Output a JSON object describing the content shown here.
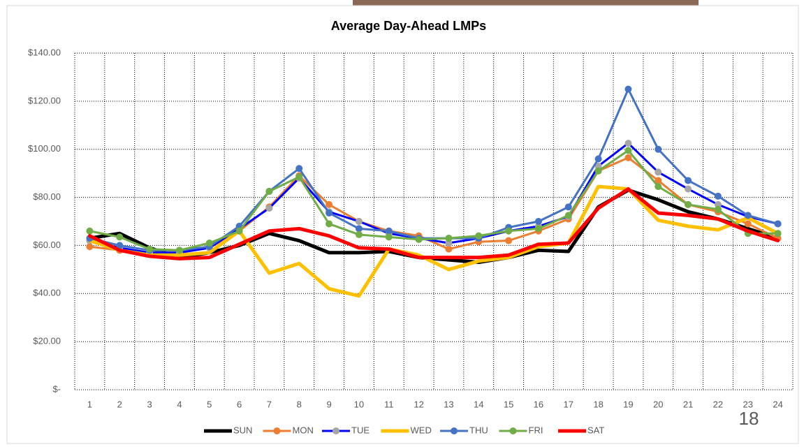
{
  "chart_data": {
    "type": "line",
    "title": "Average Day-Ahead LMPs",
    "categories": [
      "1",
      "2",
      "3",
      "4",
      "5",
      "6",
      "7",
      "8",
      "9",
      "10",
      "11",
      "12",
      "13",
      "14",
      "15",
      "16",
      "17",
      "18",
      "19",
      "20",
      "21",
      "22",
      "23",
      "24"
    ],
    "series": [
      {
        "name": "SUN",
        "color": "#000000",
        "marker": false,
        "values": [
          63,
          65,
          59,
          55,
          57,
          60,
          65,
          62,
          57,
          57,
          57.5,
          55,
          54,
          53,
          55,
          58,
          57.5,
          76,
          83,
          79,
          74,
          71,
          67,
          63
        ]
      },
      {
        "name": "MON",
        "color": "#ed7d31",
        "marker": true,
        "values": [
          59.5,
          58,
          57,
          57,
          59,
          66,
          76,
          89,
          77,
          70,
          66,
          64,
          58.5,
          61.5,
          62,
          66,
          71,
          91,
          96.5,
          87,
          77,
          74,
          69,
          63
        ]
      },
      {
        "name": "TUE",
        "color": "#0000ff",
        "marker": true,
        "marker_color": "#a5a5a5",
        "values": [
          62,
          59,
          57,
          57,
          59,
          67,
          75.5,
          88,
          74,
          70,
          65,
          63,
          61,
          63,
          66,
          68,
          72,
          93,
          102.5,
          90.5,
          83.5,
          77,
          72,
          69
        ]
      },
      {
        "name": "WED",
        "color": "#ffc000",
        "marker": false,
        "values": [
          62,
          58,
          56,
          56,
          57,
          66,
          48.5,
          52.5,
          42,
          39,
          58.5,
          56,
          50,
          53.5,
          55,
          59.5,
          61,
          84.5,
          83.5,
          70.5,
          68,
          66.5,
          71.5,
          65
        ]
      },
      {
        "name": "THU",
        "color": "#4472c4",
        "marker": true,
        "values": [
          63,
          60,
          58,
          58,
          59.5,
          68,
          82.5,
          92,
          73.5,
          67,
          66,
          63,
          63,
          63,
          67.5,
          70,
          76,
          96,
          125,
          100,
          87,
          80.5,
          72.5,
          69
        ]
      },
      {
        "name": "FRI",
        "color": "#70ad47",
        "marker": true,
        "values": [
          66,
          63.5,
          58.5,
          58,
          61,
          66,
          82.5,
          88.5,
          69,
          64.5,
          63.5,
          62.5,
          63,
          64,
          66,
          67,
          72.5,
          91,
          99.5,
          84.5,
          77,
          75,
          65,
          65
        ]
      },
      {
        "name": "SAT",
        "color": "#ff0000",
        "marker": false,
        "values": [
          64,
          58,
          55.5,
          54.5,
          55,
          60.5,
          66,
          67,
          64,
          59,
          58.5,
          55,
          55,
          55,
          56,
          60.5,
          61,
          75.5,
          83.5,
          73.5,
          72.5,
          71,
          66,
          62
        ]
      }
    ],
    "ylim": [
      0,
      140
    ],
    "yticks": [
      {
        "value": 0,
        "label": "$-"
      },
      {
        "value": 20,
        "label": "$20.00"
      },
      {
        "value": 40,
        "label": "$40.00"
      },
      {
        "value": 60,
        "label": "$60.00"
      },
      {
        "value": 80,
        "label": "$80.00"
      },
      {
        "value": 100,
        "label": "$100.00"
      },
      {
        "value": 120,
        "label": "$120.00"
      },
      {
        "value": 140,
        "label": "$140.00"
      }
    ],
    "grid": true,
    "legend": "bottom"
  },
  "page_number": "18"
}
